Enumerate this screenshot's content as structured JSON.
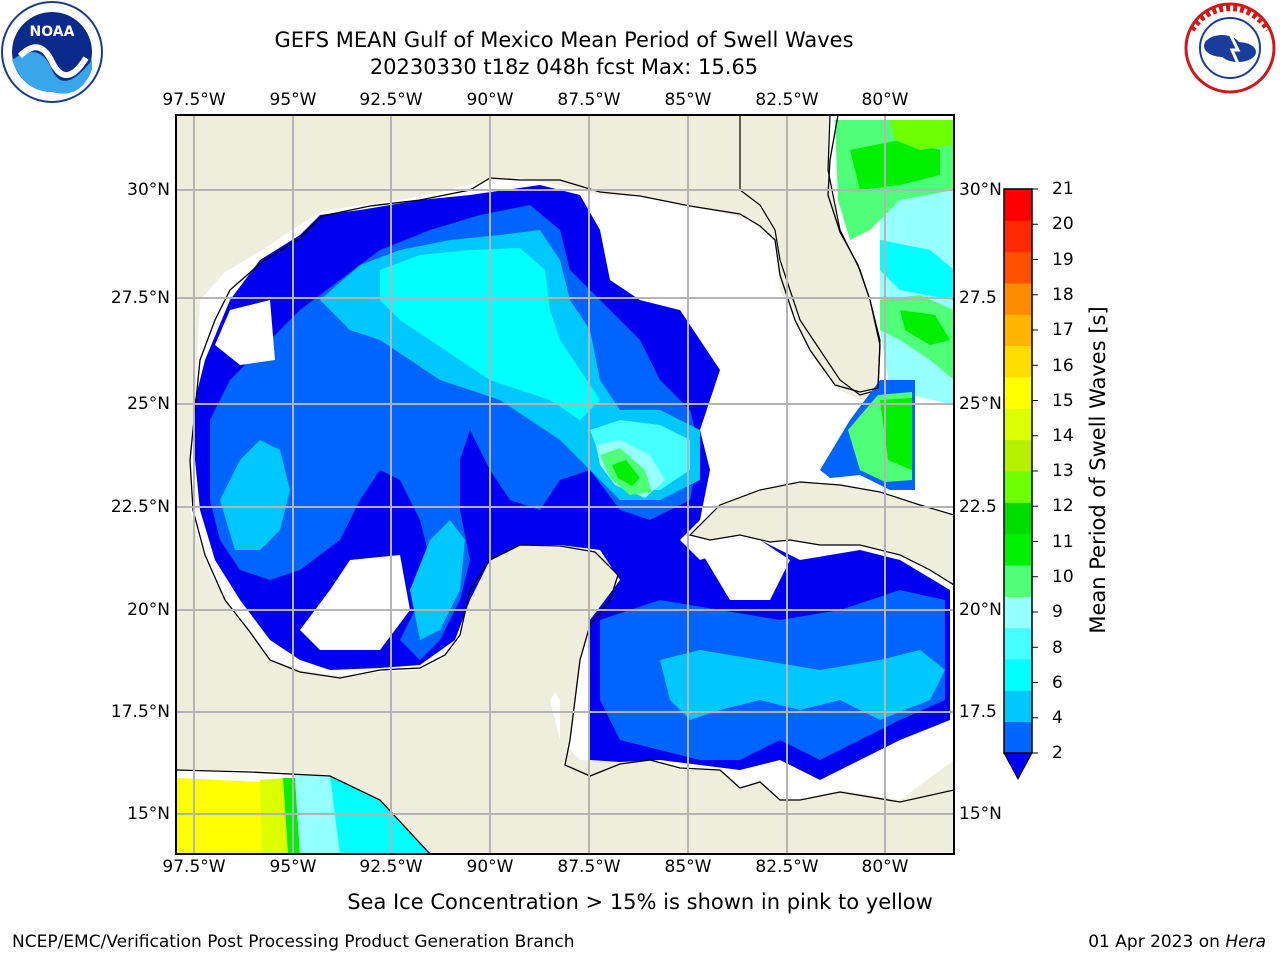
{
  "header": {
    "title_line1": "GEFS MEAN Gulf of Mexico Mean Period of Swell Waves",
    "title_line2": "20230330 t18z 048h fcst   Max: 15.65"
  },
  "logos": {
    "left_logo": "NOAA",
    "right_logo": "National Weather Service"
  },
  "map": {
    "lon_labels": [
      "97.5°W",
      "95°W",
      "92.5°W",
      "90°W",
      "87.5°W",
      "85°W",
      "82.5°W",
      "80°W"
    ],
    "lat_labels_left": [
      "30°N",
      "27.5°N",
      "25°N",
      "22.5°N",
      "20°N",
      "17.5°N",
      "15°N"
    ],
    "lat_labels_right": [
      "30°N",
      "27.5",
      "25°N",
      "22.5",
      "20°N",
      "17.5",
      "15°N"
    ],
    "colors": {
      "land": "#efeddc",
      "ocean_missing": "#ffffff",
      "gridline": "#b4b4b4",
      "coast": "#000000"
    }
  },
  "colorbar": {
    "title": "Mean Period of Swell Waves [s]",
    "tick_labels": [
      "2",
      "4",
      "6",
      "8",
      "9",
      "10",
      "11",
      "12",
      "13",
      "14",
      "15",
      "16",
      "17",
      "18",
      "19",
      "20",
      "21"
    ],
    "colors": [
      "#0000f0",
      "#0064ff",
      "#00c8ff",
      "#00ffff",
      "#46ffff",
      "#96ffff",
      "#50ff78",
      "#00f000",
      "#00dc00",
      "#6eff00",
      "#b4f000",
      "#dcff00",
      "#ffff00",
      "#ffdc00",
      "#ffb400",
      "#ff8c00",
      "#ff5000",
      "#ff2800",
      "#ff0000"
    ]
  },
  "footer": {
    "note": "Sea Ice Concentration > 15% is shown in pink to yellow",
    "left": "NCEP/EMC/Verification Post Processing Product Generation Branch",
    "right_date": "01 Apr 2023 on ",
    "right_machine": "Hera"
  }
}
